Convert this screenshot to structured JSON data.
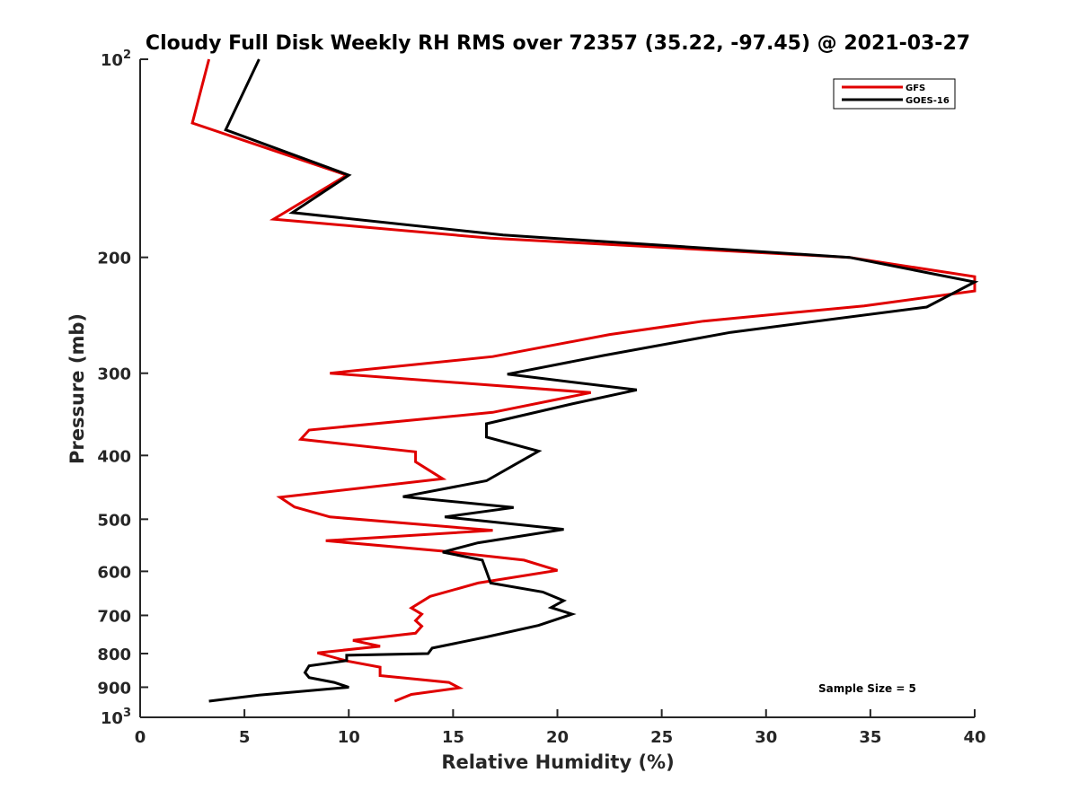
{
  "chart_data": {
    "type": "line",
    "title": "Cloudy Full Disk Weekly RH RMS over 72357 (35.22, -97.45) @ 2021-03-27",
    "xlabel": "Relative Humidity (%)",
    "ylabel": "Pressure (mb)",
    "xlim": [
      0,
      40
    ],
    "ylim": [
      100,
      1000
    ],
    "y_scale": "log",
    "y_reversed": true,
    "grid": false,
    "legend_position": "top-right",
    "x_ticks": [
      "0",
      "5",
      "10",
      "15",
      "20",
      "25",
      "30",
      "35",
      "40"
    ],
    "y_ticks": [
      {
        "value": 100,
        "base": "10",
        "sup": "2"
      },
      {
        "value": 200,
        "label": "200"
      },
      {
        "value": 300,
        "label": "300"
      },
      {
        "value": 400,
        "label": "400"
      },
      {
        "value": 500,
        "label": "500"
      },
      {
        "value": 600,
        "label": "600"
      },
      {
        "value": 700,
        "label": "700"
      },
      {
        "value": 800,
        "label": "800"
      },
      {
        "value": 900,
        "label": "900"
      },
      {
        "value": 1000,
        "base": "10",
        "sup": "3"
      }
    ],
    "annotation": "Sample Size = 5",
    "series": [
      {
        "name": "GFS",
        "color": "#e00000",
        "points": [
          [
            3.3,
            100
          ],
          [
            2.5,
            125
          ],
          [
            9.9,
            150
          ],
          [
            6.4,
            175
          ],
          [
            16.8,
            187
          ],
          [
            34.0,
            200
          ],
          [
            40.0,
            214
          ],
          [
            40.0,
            225
          ],
          [
            34.7,
            237
          ],
          [
            27.0,
            250
          ],
          [
            22.5,
            262
          ],
          [
            16.9,
            283
          ],
          [
            9.1,
            300
          ],
          [
            21.6,
            321
          ],
          [
            16.9,
            344
          ],
          [
            8.1,
            366
          ],
          [
            7.7,
            378
          ],
          [
            13.2,
            395
          ],
          [
            13.2,
            409
          ],
          [
            14.5,
            434
          ],
          [
            6.7,
            463
          ],
          [
            7.4,
            479
          ],
          [
            9.1,
            496
          ],
          [
            16.9,
            520
          ],
          [
            8.9,
            539
          ],
          [
            14.5,
            559
          ],
          [
            18.4,
            577
          ],
          [
            20.0,
            598
          ],
          [
            16.2,
            625
          ],
          [
            13.9,
            655
          ],
          [
            13.0,
            682
          ],
          [
            13.5,
            697
          ],
          [
            13.2,
            713
          ],
          [
            13.5,
            727
          ],
          [
            13.2,
            745
          ],
          [
            10.2,
            764
          ],
          [
            11.5,
            780
          ],
          [
            8.5,
            798
          ],
          [
            9.9,
            821
          ],
          [
            11.5,
            839
          ],
          [
            11.5,
            864
          ],
          [
            14.8,
            885
          ],
          [
            15.3,
            902
          ],
          [
            13.0,
            923
          ],
          [
            12.2,
            945
          ]
        ]
      },
      {
        "name": "GOES-16",
        "color": "#000000",
        "points": [
          [
            5.7,
            100
          ],
          [
            4.1,
            128
          ],
          [
            10.0,
            150
          ],
          [
            7.3,
            171
          ],
          [
            17.4,
            185
          ],
          [
            34.0,
            200
          ],
          [
            40.0,
            218
          ],
          [
            37.7,
            238
          ],
          [
            28.3,
            260
          ],
          [
            22.2,
            282
          ],
          [
            17.6,
            301
          ],
          [
            23.8,
            318
          ],
          [
            20.7,
            334
          ],
          [
            16.6,
            358
          ],
          [
            16.6,
            375
          ],
          [
            19.1,
            394
          ],
          [
            17.9,
            414
          ],
          [
            16.6,
            437
          ],
          [
            12.6,
            462
          ],
          [
            17.9,
            480
          ],
          [
            14.6,
            496
          ],
          [
            20.3,
            518
          ],
          [
            16.2,
            543
          ],
          [
            14.5,
            561
          ],
          [
            16.4,
            577
          ],
          [
            16.6,
            600
          ],
          [
            16.8,
            625
          ],
          [
            19.3,
            645
          ],
          [
            20.3,
            665
          ],
          [
            19.7,
            681
          ],
          [
            20.7,
            697
          ],
          [
            19.1,
            725
          ],
          [
            16.6,
            755
          ],
          [
            14.0,
            785
          ],
          [
            13.8,
            800
          ],
          [
            9.9,
            805
          ],
          [
            9.9,
            820
          ],
          [
            8.1,
            835
          ],
          [
            7.9,
            855
          ],
          [
            8.1,
            870
          ],
          [
            9.3,
            885
          ],
          [
            10.0,
            900
          ],
          [
            5.7,
            925
          ],
          [
            3.3,
            945
          ]
        ]
      }
    ]
  }
}
